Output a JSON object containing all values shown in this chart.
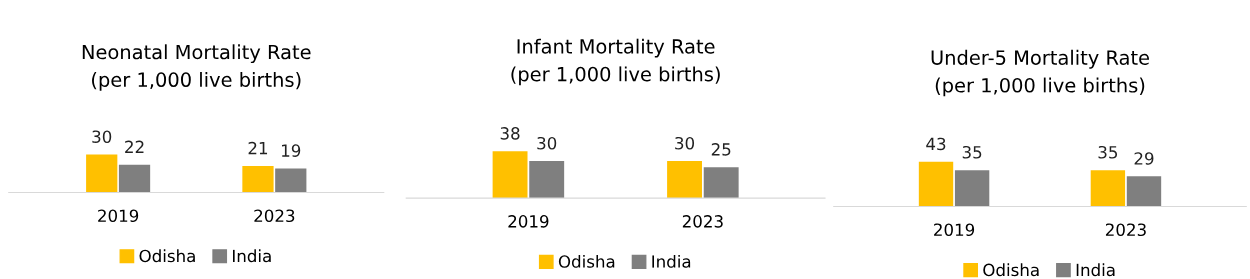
{
  "chart_data": [
    {
      "type": "bar",
      "title": "Neonatal Mortality Rate\n(per 1,000 live births)",
      "categories": [
        "2019",
        "2023"
      ],
      "series": [
        {
          "name": "Odisha",
          "color": "#ffc000",
          "values": [
            30,
            21
          ]
        },
        {
          "name": "India",
          "color": "#7f7f7f",
          "values": [
            22,
            19
          ]
        }
      ],
      "data_labels": true,
      "legend": "bottom",
      "grid": false
    },
    {
      "type": "bar",
      "title": "Infant Mortality Rate\n(per 1,000 live births)",
      "categories": [
        "2019",
        "2023"
      ],
      "series": [
        {
          "name": "Odisha",
          "color": "#ffc000",
          "values": [
            38,
            30
          ]
        },
        {
          "name": "India",
          "color": "#7f7f7f",
          "values": [
            30,
            25
          ]
        }
      ],
      "data_labels": true,
      "legend": "bottom",
      "grid": false
    },
    {
      "type": "bar",
      "title": "Under-5 Mortality Rate\n(per 1,000 live births)",
      "categories": [
        "2019",
        "2023"
      ],
      "series": [
        {
          "name": "Odisha",
          "color": "#ffc000",
          "values": [
            43,
            35
          ]
        },
        {
          "name": "India",
          "color": "#7f7f7f",
          "values": [
            35,
            29
          ]
        }
      ],
      "data_labels": true,
      "legend": "bottom",
      "grid": false
    }
  ]
}
